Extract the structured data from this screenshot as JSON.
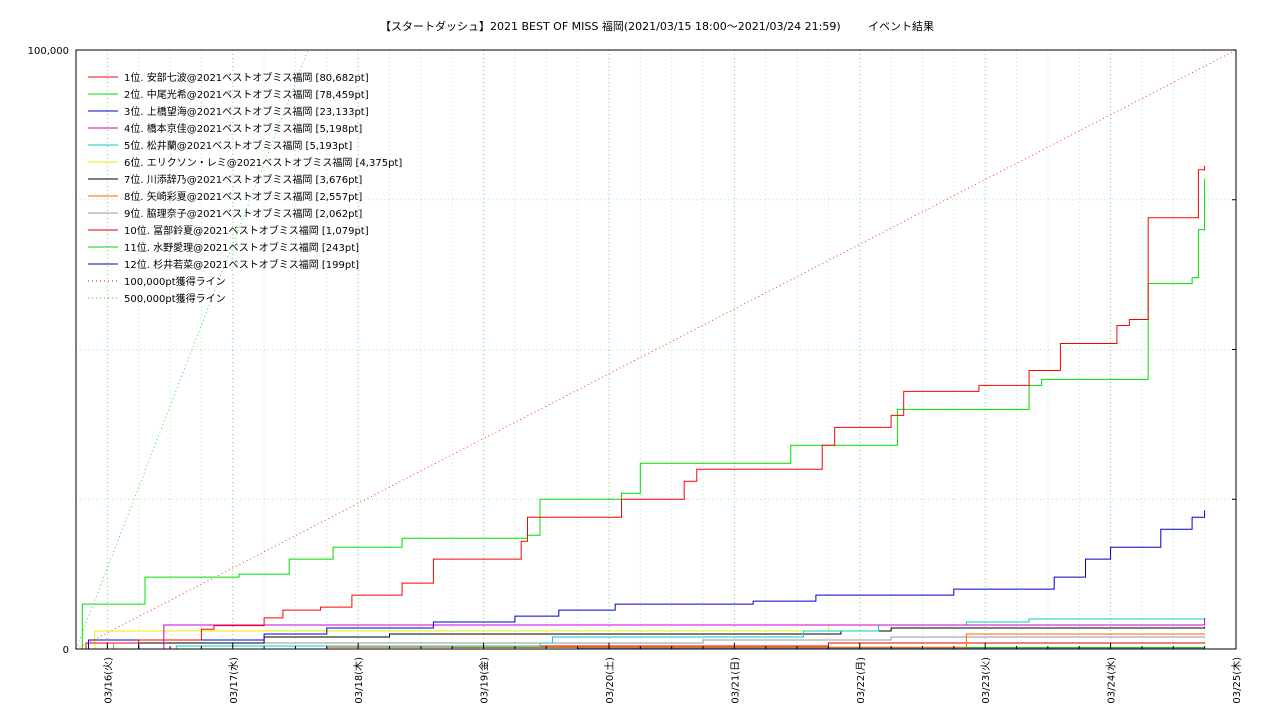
{
  "chart_data": {
    "type": "line",
    "title": "【スタートダッシュ】2021 BEST OF MISS 福岡(2021/03/15 18:00～2021/03/24 21:59)",
    "title_suffix": "イベント結果",
    "y_ticks": [
      "100,000",
      "0"
    ],
    "ylim": [
      0,
      100000
    ],
    "x_tick_labels": [
      "03/16(火)",
      "03/17(水)",
      "03/18(木)",
      "03/19(金)",
      "03/20(土)",
      "03/21(日)",
      "03/22(月)",
      "03/23(火)",
      "03/24(水)",
      "03/25(木)"
    ],
    "x_range_days": [
      0,
      9.25
    ],
    "x_note": "x values are days since 2021/03/15 18:00 (first label 03/16 00:00 = 0.25)",
    "grid": true,
    "legend_position": "top-left",
    "series": [
      {
        "name": "1位. 安部七波@2021ベストオブミス福岡 [80,682pt]",
        "color": "#ff0000",
        "points": [
          [
            0,
            0
          ],
          [
            0.08,
            1000
          ],
          [
            0.5,
            1500
          ],
          [
            1.0,
            3300
          ],
          [
            1.1,
            3900
          ],
          [
            1.5,
            5200
          ],
          [
            1.65,
            6500
          ],
          [
            1.95,
            7000
          ],
          [
            2.2,
            9000
          ],
          [
            2.6,
            11000
          ],
          [
            2.85,
            15000
          ],
          [
            3.55,
            18000
          ],
          [
            3.6,
            22000
          ],
          [
            4.35,
            25000
          ],
          [
            4.85,
            28000
          ],
          [
            4.95,
            30000
          ],
          [
            5.95,
            34000
          ],
          [
            6.05,
            37000
          ],
          [
            6.5,
            39000
          ],
          [
            6.6,
            43000
          ],
          [
            7.2,
            44000
          ],
          [
            7.6,
            46500
          ],
          [
            7.85,
            51000
          ],
          [
            8.3,
            54000
          ],
          [
            8.4,
            55000
          ],
          [
            8.55,
            72000
          ],
          [
            8.95,
            80000
          ],
          [
            9.0,
            80682
          ]
        ]
      },
      {
        "name": "2位. 中尾光希@2021ベストオブミス福岡 [78,459pt]",
        "color": "#00dd00",
        "points": [
          [
            0,
            0
          ],
          [
            0.05,
            7500
          ],
          [
            0.3,
            7500
          ],
          [
            0.55,
            12000
          ],
          [
            1.3,
            12500
          ],
          [
            1.7,
            15000
          ],
          [
            2.05,
            17000
          ],
          [
            2.6,
            18500
          ],
          [
            3.6,
            19000
          ],
          [
            3.7,
            25000
          ],
          [
            4.35,
            26000
          ],
          [
            4.5,
            31000
          ],
          [
            5.65,
            31000
          ],
          [
            5.7,
            34000
          ],
          [
            6.5,
            34000
          ],
          [
            6.55,
            40000
          ],
          [
            7.5,
            40000
          ],
          [
            7.6,
            44000
          ],
          [
            7.7,
            45000
          ],
          [
            8.5,
            45000
          ],
          [
            8.55,
            61000
          ],
          [
            8.9,
            62000
          ],
          [
            8.95,
            70000
          ],
          [
            9.0,
            78459
          ]
        ]
      },
      {
        "name": "3位. 上橋望海@2021ベストオブミス福岡 [23,133pt]",
        "color": "#0000cc",
        "points": [
          [
            0,
            0
          ],
          [
            0.1,
            1500
          ],
          [
            1.5,
            2500
          ],
          [
            2.0,
            3500
          ],
          [
            2.85,
            4500
          ],
          [
            3.5,
            5500
          ],
          [
            3.85,
            6500
          ],
          [
            4.3,
            7500
          ],
          [
            5.4,
            8000
          ],
          [
            5.9,
            9000
          ],
          [
            7.0,
            10000
          ],
          [
            7.8,
            12000
          ],
          [
            8.05,
            15000
          ],
          [
            8.25,
            17000
          ],
          [
            8.65,
            20000
          ],
          [
            8.9,
            22000
          ],
          [
            9.0,
            23133
          ]
        ]
      },
      {
        "name": "4位. 橋本京佳@2021ベストオブミス福岡 [5,198pt]",
        "color": "#cc00cc",
        "points": [
          [
            0,
            0
          ],
          [
            0.7,
            4000
          ],
          [
            9.0,
            5198
          ]
        ]
      },
      {
        "name": "5位. 松井蘭@2021ベストオブミス福岡 [5,193pt]",
        "color": "#00cccc",
        "points": [
          [
            0,
            0
          ],
          [
            0.8,
            500
          ],
          [
            3.7,
            1000
          ],
          [
            3.8,
            2000
          ],
          [
            5.8,
            3000
          ],
          [
            6.4,
            4000
          ],
          [
            7.1,
            4500
          ],
          [
            7.6,
            5000
          ],
          [
            9.0,
            5193
          ]
        ]
      },
      {
        "name": "6位. エリクソン・レミ@2021ベストオブミス福岡 [4,375pt]",
        "color": "#eeee00",
        "points": [
          [
            0,
            0
          ],
          [
            0.15,
            3000
          ],
          [
            5.8,
            3000
          ],
          [
            6.0,
            4000
          ],
          [
            9.0,
            4375
          ]
        ]
      },
      {
        "name": "7位. 川添辞乃@2021ベストオブミス福岡 [3,676pt]",
        "color": "#000000",
        "points": [
          [
            0,
            0
          ],
          [
            0.5,
            1000
          ],
          [
            1.5,
            2000
          ],
          [
            2.5,
            2500
          ],
          [
            6.1,
            3000
          ],
          [
            6.5,
            3500
          ],
          [
            9.0,
            3676
          ]
        ]
      },
      {
        "name": "8位. 矢崎彩夏@2021ベストオブミス福岡 [2,557pt]",
        "color": "#ff6600",
        "points": [
          [
            0,
            0
          ],
          [
            2.0,
            300
          ],
          [
            7.1,
            2500
          ],
          [
            9.0,
            2557
          ]
        ]
      },
      {
        "name": "9位. 脇理奈子@2021ベストオブミス福岡 [2,062pt]",
        "color": "#999999",
        "points": [
          [
            0,
            0
          ],
          [
            0.3,
            1000
          ],
          [
            5.0,
            1500
          ],
          [
            6.5,
            2000
          ],
          [
            9.0,
            2062
          ]
        ]
      },
      {
        "name": "10位. 冨部鈴夏@2021ベストオブミス福岡 [1,079pt]",
        "color": "#dd0000",
        "points": [
          [
            0,
            0
          ],
          [
            1.0,
            500
          ],
          [
            6.0,
            1000
          ],
          [
            9.0,
            1079
          ]
        ]
      },
      {
        "name": "11位. 水野愛理@2021ベストオブミス福岡 [243pt]",
        "color": "#11cc11",
        "points": [
          [
            0,
            0
          ],
          [
            3.0,
            243
          ],
          [
            9.0,
            243
          ]
        ]
      },
      {
        "name": "12位. 杉井若菜@2021ベストオブミス福岡 [199pt]",
        "color": "#0000aa",
        "points": [
          [
            0,
            0
          ],
          [
            4.0,
            199
          ],
          [
            9.0,
            199
          ]
        ]
      }
    ],
    "reference_lines": [
      {
        "name": "100,000pt獲得ライン",
        "color": "#ff0000",
        "style": "dotted",
        "points": [
          [
            0,
            0
          ],
          [
            9.25,
            100000
          ]
        ]
      },
      {
        "name": "500,000pt獲得ライン",
        "color": "#00dd00",
        "style": "dotted",
        "points": [
          [
            0,
            0
          ],
          [
            9.25,
            500000
          ]
        ]
      }
    ]
  }
}
